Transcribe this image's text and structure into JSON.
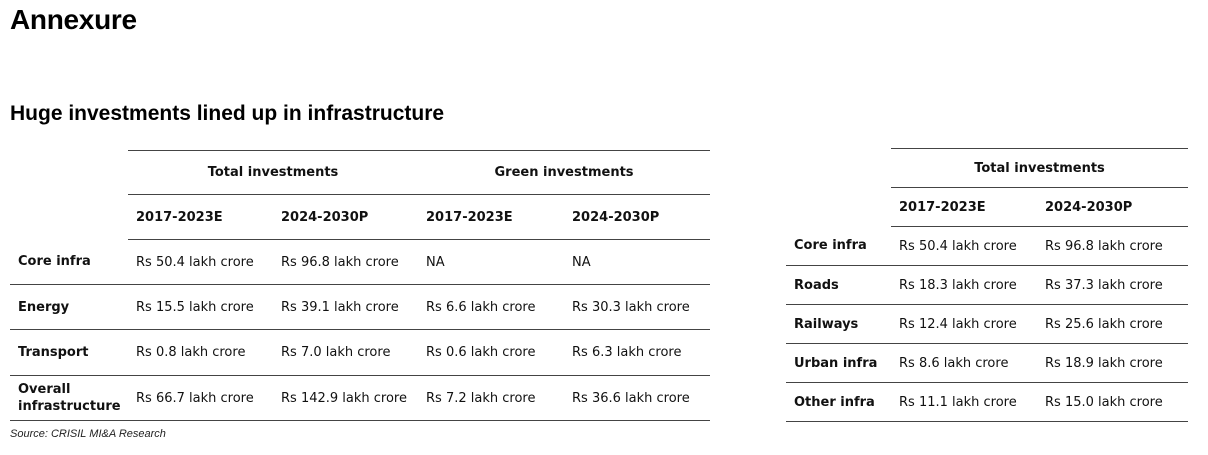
{
  "page_title": "Annexure",
  "subtitle": "Huge investments lined up in infrastructure",
  "source": "Source: CRISIL MI&A Research",
  "left_table": {
    "group_headers": [
      "Total investments",
      "Green investments"
    ],
    "sub_headers": [
      "2017-2023E",
      "2024-2030P",
      "2017-2023E",
      "2024-2030P"
    ],
    "rows": [
      {
        "label": "Core infra",
        "values": [
          "Rs 50.4 lakh crore",
          "Rs 96.8 lakh crore",
          "NA",
          "NA"
        ]
      },
      {
        "label": "Energy",
        "values": [
          "Rs 15.5 lakh crore",
          "Rs 39.1 lakh crore",
          "Rs 6.6 lakh crore",
          "Rs 30.3 lakh crore"
        ]
      },
      {
        "label": "Transport",
        "values": [
          "Rs 0.8 lakh crore",
          "Rs 7.0 lakh crore",
          "Rs 0.6 lakh crore",
          "Rs 6.3 lakh crore"
        ]
      },
      {
        "label": "Overall infrastructure",
        "values": [
          "Rs 66.7 lakh crore",
          "Rs 142.9 lakh crore",
          "Rs 7.2 lakh crore",
          "Rs 36.6 lakh crore"
        ]
      }
    ]
  },
  "right_table": {
    "group_header": "Total investments",
    "sub_headers": [
      "2017-2023E",
      "2024-2030P"
    ],
    "rows": [
      {
        "label": "Core infra",
        "values": [
          "Rs 50.4 lakh crore",
          "Rs 96.8 lakh crore"
        ]
      },
      {
        "label": "Roads",
        "values": [
          "Rs 18.3 lakh crore",
          "Rs 37.3 lakh crore"
        ]
      },
      {
        "label": "Railways",
        "values": [
          "Rs 12.4 lakh crore",
          "Rs 25.6 lakh crore"
        ]
      },
      {
        "label": "Urban infra",
        "values": [
          "Rs 8.6 lakh crore",
          "Rs 18.9 lakh crore"
        ]
      },
      {
        "label": "Other infra",
        "values": [
          "Rs 11.1 lakh crore",
          "Rs 15.0 lakh crore"
        ]
      }
    ]
  }
}
